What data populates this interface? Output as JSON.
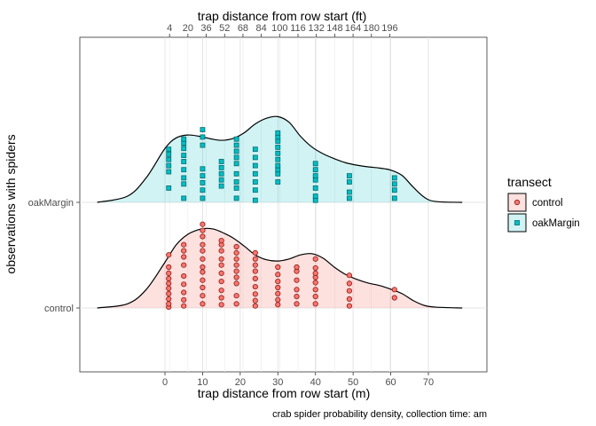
{
  "chart_data": {
    "type": "ridgeline",
    "title": "",
    "xlabel": "trap distance from row start (m)",
    "xlabel_top": "trap distance from row start (ft)",
    "ylabel": "observations with spiders",
    "caption": "crab spider probability density, collection time: am",
    "xlim": [
      -20,
      85
    ],
    "x_ticks": [
      0,
      10,
      20,
      30,
      40,
      50,
      60,
      70
    ],
    "x_ticks_top_ft": [
      4,
      20,
      36,
      52,
      68,
      84,
      100,
      116,
      132,
      148,
      164,
      180,
      196
    ],
    "categories": [
      "control",
      "oakMargin"
    ],
    "legend": {
      "title": "transect",
      "position": "right",
      "items": [
        {
          "label": "control",
          "shape": "circle",
          "fill": "#F8766D"
        },
        {
          "label": "oakMargin",
          "shape": "square",
          "fill": "#00BFC4"
        }
      ]
    },
    "grid": true,
    "series": [
      {
        "name": "control",
        "color": "#F8766D",
        "density_x": [
          -18,
          -10,
          -5,
          0,
          3,
          6,
          9,
          11,
          13,
          15,
          18,
          21,
          24,
          27,
          30,
          33,
          36,
          39,
          42,
          45,
          48,
          51,
          54,
          57,
          60,
          63,
          66,
          69,
          72,
          79
        ],
        "density_y": [
          0.0,
          0.1,
          0.45,
          1.12,
          1.55,
          1.8,
          1.92,
          1.95,
          1.93,
          1.86,
          1.72,
          1.52,
          1.3,
          1.18,
          1.15,
          1.2,
          1.3,
          1.33,
          1.22,
          1.0,
          0.82,
          0.7,
          0.61,
          0.55,
          0.46,
          0.35,
          0.18,
          0.06,
          0.02,
          0.0
        ],
        "points": [
          {
            "x": 1,
            "n": [
              0.02,
              0.1,
              0.22,
              0.35,
              0.48,
              0.6,
              0.72,
              0.85,
              1.0,
              1.3
            ]
          },
          {
            "x": 5,
            "n": [
              0.05,
              0.2,
              0.38,
              0.58,
              0.78,
              1.05,
              1.25,
              1.4,
              1.55
            ]
          },
          {
            "x": 10,
            "n": [
              0.1,
              0.3,
              0.5,
              0.68,
              0.88,
              1.0,
              1.2,
              1.4,
              1.55,
              1.75,
              1.9,
              2.05
            ]
          },
          {
            "x": 15,
            "n": [
              0.08,
              0.25,
              0.43,
              0.65,
              0.85,
              1.05,
              1.2,
              1.4,
              1.55,
              1.65
            ]
          },
          {
            "x": 19,
            "n": [
              0.1,
              0.3,
              0.6,
              0.75,
              0.9,
              1.05,
              1.2,
              1.35,
              1.5
            ]
          },
          {
            "x": 24,
            "n": [
              0.05,
              0.18,
              0.34,
              0.52,
              0.72,
              0.9,
              1.05,
              1.2,
              1.35
            ]
          },
          {
            "x": 30,
            "n": [
              0.08,
              0.2,
              0.35,
              0.5,
              0.65,
              0.82,
              1.0
            ]
          },
          {
            "x": 35,
            "n": [
              0.1,
              0.28,
              0.45,
              0.68,
              0.9,
              1.0
            ]
          },
          {
            "x": 40,
            "n": [
              0.1,
              0.28,
              0.45,
              0.62,
              0.75,
              0.85,
              0.98,
              1.2
            ]
          },
          {
            "x": 49,
            "n": [
              0.05,
              0.22,
              0.42,
              0.6,
              0.8
            ]
          },
          {
            "x": 61,
            "n": [
              0.25,
              0.45
            ]
          }
        ]
      },
      {
        "name": "oakMargin",
        "color": "#00BFC4",
        "density_x": [
          -18,
          -10,
          -5,
          0,
          3,
          6,
          9,
          12,
          15,
          18,
          21,
          24,
          27,
          30,
          33,
          36,
          39,
          42,
          45,
          48,
          51,
          54,
          57,
          60,
          63,
          66,
          69,
          72,
          79
        ],
        "density_y": [
          0.0,
          0.15,
          0.6,
          1.32,
          1.58,
          1.65,
          1.62,
          1.56,
          1.52,
          1.56,
          1.7,
          1.92,
          2.06,
          2.1,
          1.96,
          1.62,
          1.36,
          1.19,
          1.07,
          0.97,
          0.91,
          0.87,
          0.84,
          0.79,
          0.66,
          0.37,
          0.12,
          0.02,
          0.0
        ],
        "points": [
          {
            "x": 1,
            "n": [
              0.35,
              0.75,
              0.9,
              1.05,
              1.18,
              1.3
            ]
          },
          {
            "x": 5,
            "n": [
              0.1,
              0.45,
              0.6,
              0.8,
              1.0,
              1.15,
              1.32,
              1.45,
              1.55
            ]
          },
          {
            "x": 10,
            "n": [
              0.1,
              0.3,
              0.48,
              0.65,
              0.82,
              1.4,
              1.6,
              1.78
            ]
          },
          {
            "x": 15,
            "n": [
              0.4,
              0.55,
              0.7,
              0.85,
              1.0
            ]
          },
          {
            "x": 19,
            "n": [
              0.1,
              0.35,
              0.5,
              0.7,
              0.95,
              1.1,
              1.25,
              1.4,
              1.55
            ]
          },
          {
            "x": 24,
            "n": [
              0.05,
              0.3,
              0.5,
              0.7,
              0.9,
              1.1,
              1.3
            ]
          },
          {
            "x": 30,
            "n": [
              0.5,
              0.7,
              0.8,
              0.9,
              1.05,
              1.2,
              1.35,
              1.5,
              1.6,
              1.7
            ]
          },
          {
            "x": 40,
            "n": [
              0.05,
              0.15,
              0.35,
              0.55,
              0.65,
              0.8,
              0.95
            ]
          },
          {
            "x": 49,
            "n": [
              0.1,
              0.25,
              0.5,
              0.65
            ]
          },
          {
            "x": 61,
            "n": [
              0.1,
              0.3,
              0.45,
              0.6
            ]
          }
        ]
      }
    ]
  }
}
